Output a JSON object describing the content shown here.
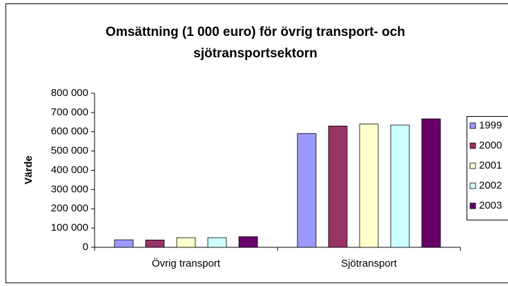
{
  "chart_data": {
    "type": "bar",
    "title": "Omsättning (1 000 euro) för övrig transport- och sjötransportsektorn",
    "ylabel": "Värde",
    "categories": [
      "Övrig transport",
      "Sjötransport"
    ],
    "series": [
      {
        "name": "1999",
        "color": "#9999ff",
        "values": [
          39000,
          591000
        ]
      },
      {
        "name": "2000",
        "color": "#993366",
        "values": [
          38000,
          630000
        ]
      },
      {
        "name": "2001",
        "color": "#ffffcc",
        "values": [
          50000,
          640000
        ]
      },
      {
        "name": "2002",
        "color": "#ccffff",
        "values": [
          50000,
          635000
        ]
      },
      {
        "name": "2003",
        "color": "#660066",
        "values": [
          55000,
          667000
        ]
      }
    ],
    "ylim": [
      0,
      800000
    ],
    "yticks": [
      0,
      {
        "value": 100000,
        "label": "100 000"
      },
      {
        "value": 200000,
        "label": "200 000"
      },
      {
        "value": 300000,
        "label": "300 000"
      },
      {
        "value": 400000,
        "label": "400 000"
      },
      {
        "value": 500000,
        "label": "500 000"
      },
      {
        "value": 600000,
        "label": "600 000"
      },
      {
        "value": 700000,
        "label": "700 000"
      },
      {
        "value": 800000,
        "label": "800 000"
      }
    ],
    "legend": "right"
  }
}
